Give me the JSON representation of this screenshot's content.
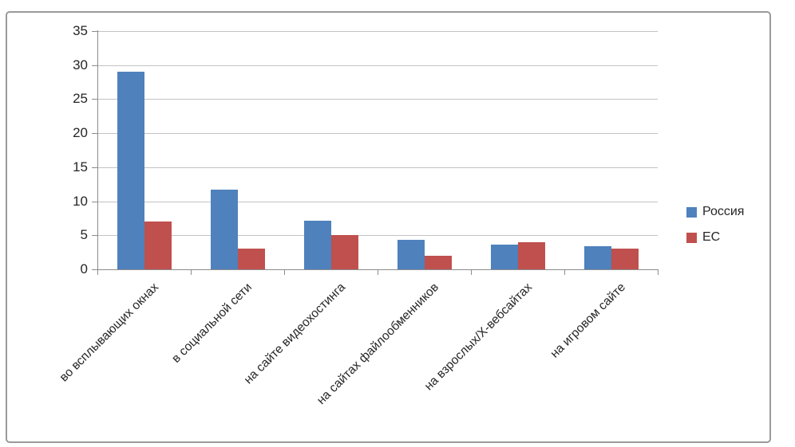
{
  "chart_data": {
    "type": "bar",
    "title": "",
    "xlabel": "",
    "ylabel": "",
    "categories": [
      "во всплывающих окнах",
      "в социальной сети",
      "на сайте видеохостинга",
      "на сайтах файлообменников",
      "на взрослых/Х-вебсайтах",
      "на игровом сайте"
    ],
    "series": [
      {
        "name": "Россия",
        "color": "#4f81bd",
        "values": [
          29,
          11.7,
          7.1,
          4.3,
          3.6,
          3.4
        ]
      },
      {
        "name": "ЕС",
        "color": "#c0504d",
        "values": [
          7,
          3,
          5,
          2,
          4,
          3
        ]
      }
    ],
    "ylim": [
      0,
      35
    ],
    "y_ticks": [
      35,
      30,
      25,
      20,
      15,
      10,
      5,
      0
    ],
    "grid": true,
    "legend_position": "right-middle",
    "category_label_rotation_deg": 45
  },
  "colors": {
    "series_russia": "#4f81bd",
    "series_eu": "#c0504d",
    "gridline": "#c3c3c3",
    "axis": "#8c8c8c",
    "frame_border": "#9a9a9a",
    "text": "#262626",
    "background": "#ffffff"
  }
}
